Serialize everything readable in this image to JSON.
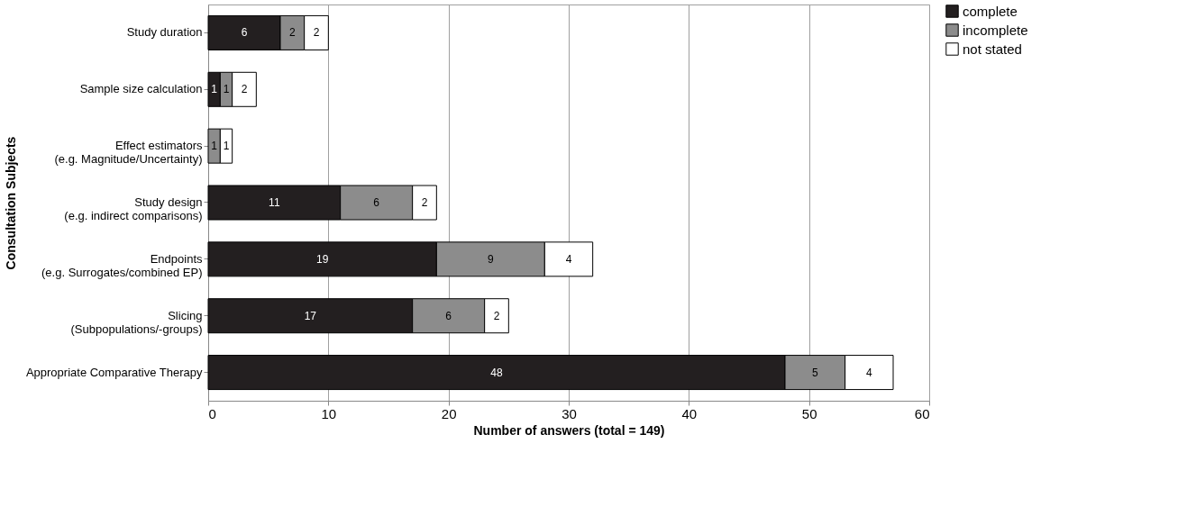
{
  "chart_data": {
    "type": "bar",
    "orientation": "horizontal",
    "stacked": true,
    "xlabel": "Number of answers (total = 149)",
    "ylabel": "Consultation Subjects",
    "categories": [
      "Study duration",
      "Sample size calculation",
      "Effect estimators\n(e.g. Magnitude/Uncertainty)",
      "Study design\n(e.g. indirect comparisons)",
      "Endpoints\n(e.g. Surrogates/combined EP)",
      "Slicing\n(Subpopulations/-groups)",
      "Appropriate Comparative Therapy"
    ],
    "series": [
      {
        "name": "complete",
        "color": "#231f20",
        "values": [
          6,
          1,
          null,
          11,
          19,
          17,
          48
        ]
      },
      {
        "name": "incomplete",
        "color": "#8c8c8c",
        "values": [
          2,
          1,
          1,
          6,
          9,
          6,
          5
        ]
      },
      {
        "name": "not stated",
        "color": "#ffffff",
        "values": [
          2,
          2,
          1,
          2,
          4,
          2,
          4
        ]
      }
    ],
    "xlim": [
      0,
      60
    ],
    "xticks": [
      0,
      10,
      20,
      30,
      40,
      50,
      60
    ],
    "grid": "x",
    "legend": "right",
    "data_labels": true
  }
}
